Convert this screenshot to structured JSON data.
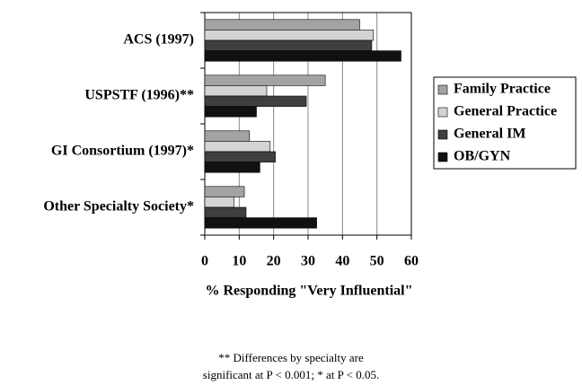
{
  "chart_data": {
    "type": "hbar",
    "categories": [
      "ACS (1997)",
      "USPSTF (1996)**",
      "GI Consortium (1997)*",
      "Other Specialty Society*"
    ],
    "series": [
      {
        "name": "Family Practice",
        "color": "#a3a3a3",
        "values": [
          45,
          35,
          13,
          11.5
        ]
      },
      {
        "name": "General Practice",
        "color": "#d4d4d4",
        "values": [
          49,
          18,
          19,
          8.5
        ]
      },
      {
        "name": "General IM",
        "color": "#3f3f3f",
        "values": [
          48.5,
          29.5,
          20.5,
          12
        ]
      },
      {
        "name": "OB/GYN",
        "color": "#111111",
        "values": [
          57,
          15,
          16,
          32.5
        ]
      }
    ],
    "xlabel": "% Responding \"Very Influential\"",
    "xlim": [
      0,
      60
    ],
    "xticks": [
      0,
      10,
      20,
      30,
      40,
      50,
      60
    ],
    "grid": true,
    "legend": "right",
    "annotations": [
      "** Differences by specialty are",
      "significant at P < 0.001; * at P < 0.05."
    ]
  }
}
